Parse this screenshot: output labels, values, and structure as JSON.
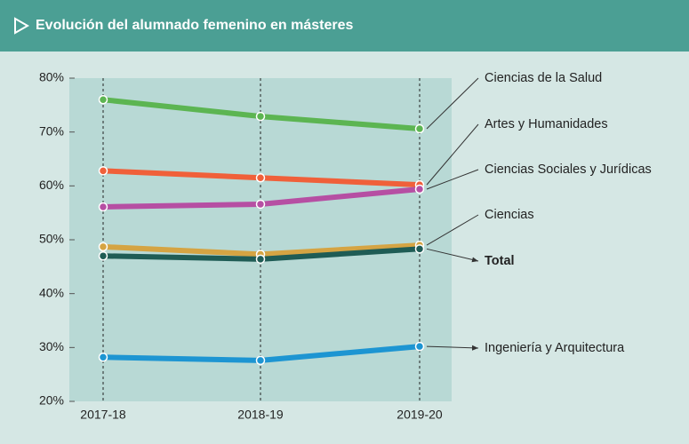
{
  "chart_data": {
    "type": "line",
    "title": "Evolución del alumnado femenino en másteres",
    "categories": [
      "2017-18",
      "2018-19",
      "2019-20"
    ],
    "ylim": [
      20,
      80
    ],
    "yticks": [
      {
        "value": 20,
        "label": "20%"
      },
      {
        "value": 30,
        "label": "30%"
      },
      {
        "value": 40,
        "label": "40%"
      },
      {
        "value": 50,
        "label": "50%"
      },
      {
        "value": 60,
        "label": "60%"
      },
      {
        "value": 70,
        "label": "70%"
      },
      {
        "value": 80,
        "label": "80%"
      }
    ],
    "series": [
      {
        "name": "Ciencias de la Salud",
        "color": "#5cb552",
        "values": [
          76.0,
          72.9,
          70.6
        ]
      },
      {
        "name": "Artes y Humanidades",
        "color": "#f0603a",
        "values": [
          62.8,
          61.5,
          60.2
        ]
      },
      {
        "name": "Ciencias Sociales y Jurídicas",
        "color": "#b64fa3",
        "values": [
          56.1,
          56.6,
          59.4
        ]
      },
      {
        "name": "Ciencias",
        "color": "#d5a443",
        "values": [
          48.7,
          47.3,
          49.0
        ]
      },
      {
        "name": "Total",
        "color": "#1f5c55",
        "values": [
          47.0,
          46.4,
          48.3
        ]
      },
      {
        "name": "Ingeniería y Arquitectura",
        "color": "#1d95d2",
        "values": [
          28.2,
          27.6,
          30.2
        ]
      }
    ]
  }
}
